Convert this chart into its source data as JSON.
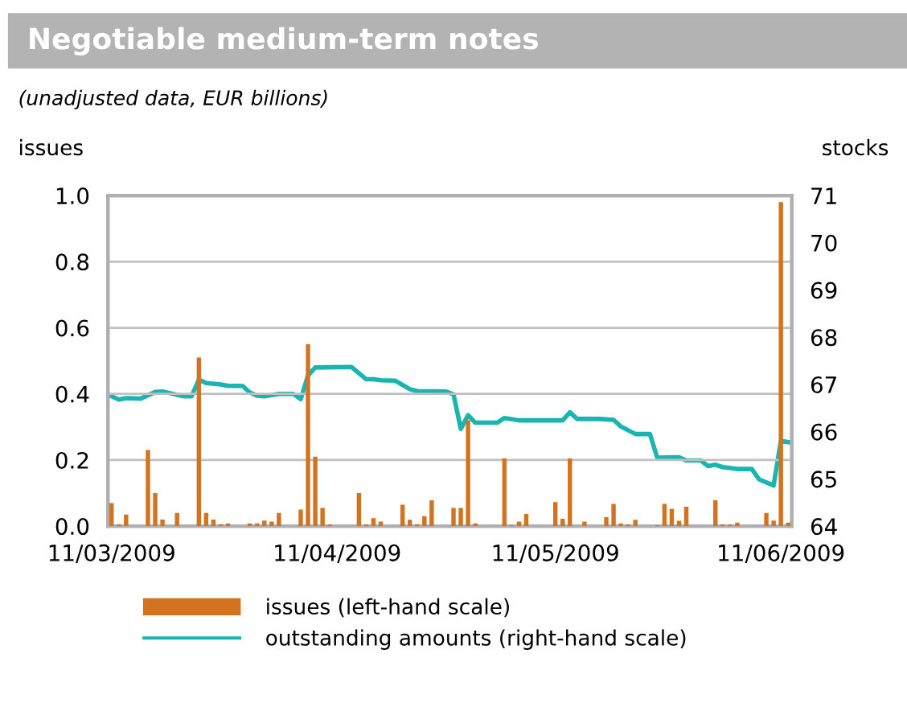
{
  "chart_data": {
    "type": "bar",
    "title": "Negotiable medium-term notes",
    "subtitle": "(unadjusted data, EUR billions)",
    "ylabel": "issues",
    "y2label": "stocks",
    "xlim": [
      "2009-03-10T12:00",
      "2009-06-12T12:00"
    ],
    "xticks": [
      {
        "value": "2009-03-11",
        "label": "11/03/2009"
      },
      {
        "value": "2009-04-11",
        "label": "11/04/2009"
      },
      {
        "value": "2009-05-11",
        "label": "11/05/2009"
      },
      {
        "value": "2009-06-11",
        "label": "11/06/2009"
      }
    ],
    "ylim": [
      0,
      1
    ],
    "yticks": [
      {
        "value": 0,
        "label": "0.0"
      },
      0.2,
      0.4,
      0.6,
      0.8,
      {
        "value": 1,
        "label": "1.0"
      }
    ],
    "y2lim": [
      64,
      71
    ],
    "y2ticks": [
      64,
      65,
      66,
      67,
      68,
      69,
      70,
      71
    ],
    "grid": "y",
    "legend": "bottom",
    "series": [
      {
        "name": "issues (left-hand scale)",
        "color": "#d4731f",
        "x": [
          "2009-03-11",
          "2009-03-12",
          "2009-03-13",
          "2009-03-16",
          "2009-03-17",
          "2009-03-18",
          "2009-03-20",
          "2009-03-23",
          "2009-03-24",
          "2009-03-25",
          "2009-03-26",
          "2009-03-27",
          "2009-03-30",
          "2009-03-31",
          "2009-04-01",
          "2009-04-02",
          "2009-04-03",
          "2009-04-06",
          "2009-04-07",
          "2009-04-08",
          "2009-04-09",
          "2009-04-10",
          "2009-04-14",
          "2009-04-15",
          "2009-04-16",
          "2009-04-17",
          "2009-04-20",
          "2009-04-21",
          "2009-04-22",
          "2009-04-23",
          "2009-04-24",
          "2009-04-27",
          "2009-04-28",
          "2009-04-29",
          "2009-04-30",
          "2009-05-04",
          "2009-05-05",
          "2009-05-06",
          "2009-05-07",
          "2009-05-11",
          "2009-05-12",
          "2009-05-13",
          "2009-05-15",
          "2009-05-18",
          "2009-05-19",
          "2009-05-20",
          "2009-05-21",
          "2009-05-22",
          "2009-05-25",
          "2009-05-26",
          "2009-05-27",
          "2009-05-28",
          "2009-05-29",
          "2009-06-02",
          "2009-06-03",
          "2009-06-04",
          "2009-06-05",
          "2009-06-09",
          "2009-06-10",
          "2009-06-11",
          "2009-06-12"
        ],
        "values": [
          0.07,
          0.005,
          0.035,
          0.23,
          0.1,
          0.02,
          0.04,
          0.51,
          0.04,
          0.02,
          0.006,
          0.008,
          0.008,
          0.008,
          0.017,
          0.014,
          0.04,
          0.05,
          0.55,
          0.21,
          0.055,
          0.005,
          0.1,
          0.005,
          0.024,
          0.014,
          0.065,
          0.019,
          0.006,
          0.03,
          0.078,
          0.055,
          0.055,
          0.32,
          0.008,
          0.205,
          0.003,
          0.014,
          0.037,
          0.073,
          0.022,
          0.205,
          0.014,
          0.027,
          0.067,
          0.008,
          0.005,
          0.019,
          0.003,
          0.067,
          0.052,
          0.016,
          0.059,
          0.078,
          0.005,
          0.005,
          0.011,
          0.04,
          0.017,
          0.98,
          0.011
        ]
      },
      {
        "name": "outstanding amounts (right-hand scale)",
        "type": "line",
        "axis": "y2",
        "color": "#1ab5b0",
        "marker": "none",
        "line_style": "solid",
        "x": [
          "2009-03-11",
          "2009-03-12",
          "2009-03-13",
          "2009-03-15",
          "2009-03-17",
          "2009-03-18",
          "2009-03-20",
          "2009-03-21",
          "2009-03-22",
          "2009-03-23",
          "2009-03-24",
          "2009-03-26",
          "2009-03-27",
          "2009-03-29",
          "2009-03-30",
          "2009-03-31",
          "2009-04-01",
          "2009-04-03",
          "2009-04-05",
          "2009-04-06",
          "2009-04-07",
          "2009-04-08",
          "2009-04-13",
          "2009-04-15",
          "2009-04-16",
          "2009-04-17",
          "2009-04-19",
          "2009-04-21",
          "2009-04-22",
          "2009-04-26",
          "2009-04-27",
          "2009-04-28",
          "2009-04-29",
          "2009-04-30",
          "2009-05-03",
          "2009-05-04",
          "2009-05-06",
          "2009-05-11",
          "2009-05-12",
          "2009-05-13",
          "2009-05-14",
          "2009-05-17",
          "2009-05-19",
          "2009-05-20",
          "2009-05-22",
          "2009-05-24",
          "2009-05-25",
          "2009-05-28",
          "2009-05-29",
          "2009-05-31",
          "2009-06-01",
          "2009-06-02",
          "2009-06-03",
          "2009-06-05",
          "2009-06-07",
          "2009-06-08",
          "2009-06-10",
          "2009-06-11",
          "2009-06-12"
        ],
        "values": [
          66.75,
          66.68,
          66.71,
          66.7,
          66.84,
          66.85,
          66.78,
          66.75,
          66.75,
          67.1,
          67.03,
          67.0,
          66.97,
          66.97,
          66.83,
          66.76,
          66.75,
          66.8,
          66.8,
          66.69,
          67.19,
          67.36,
          67.37,
          67.11,
          67.11,
          67.09,
          67.08,
          66.9,
          66.86,
          66.85,
          66.79,
          66.06,
          66.35,
          66.19,
          66.19,
          66.29,
          66.24,
          66.24,
          66.24,
          66.41,
          66.27,
          66.27,
          66.25,
          66.11,
          65.95,
          65.95,
          65.45,
          65.46,
          65.39,
          65.39,
          65.27,
          65.3,
          65.25,
          65.21,
          65.21,
          64.99,
          64.86,
          65.81,
          65.78
        ]
      }
    ]
  }
}
